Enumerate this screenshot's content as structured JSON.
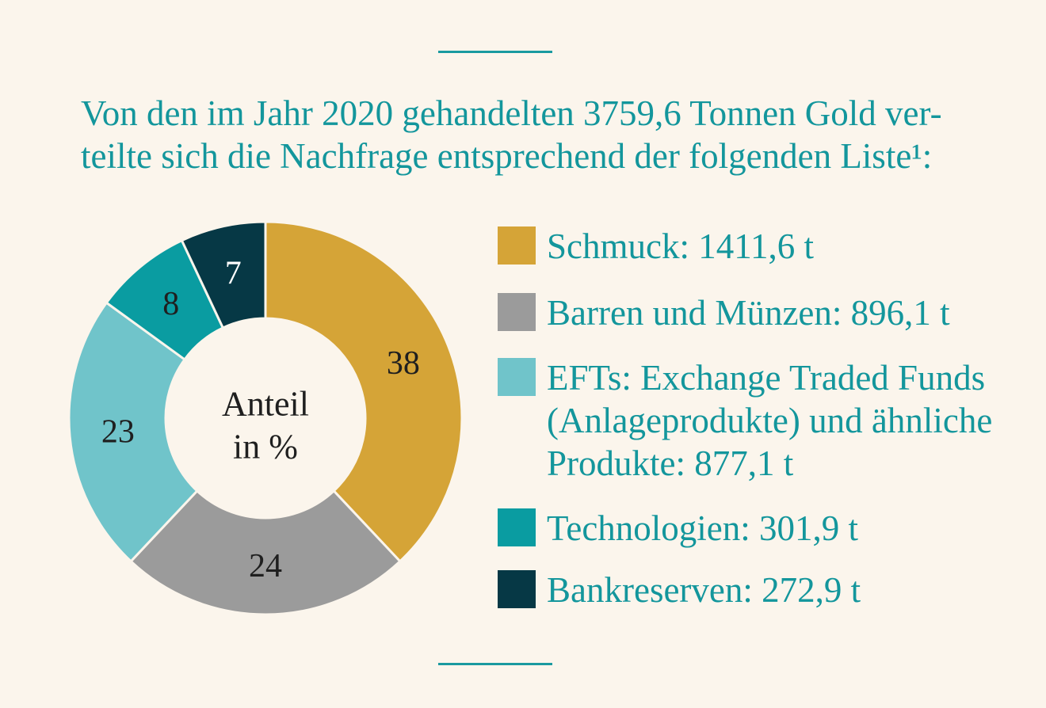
{
  "header": {
    "line1": "Von den im Jahr 2020 gehandelten 3759,6 Tonnen Gold ver-",
    "line2": "teilte sich die Nachfrage entsprechend der folgenden Liste¹:"
  },
  "chart_data": {
    "type": "pie",
    "center_label": [
      "Anteil",
      "in %"
    ],
    "categories": [
      "Schmuck",
      "Barren und Münzen",
      "EFTs",
      "Technologien",
      "Bankreserven"
    ],
    "values": [
      38,
      24,
      23,
      8,
      7
    ],
    "data_labels": [
      "38",
      "24",
      "23",
      "8",
      "7"
    ],
    "colors": [
      "#d5a437",
      "#9b9b9b",
      "#70c4ca",
      "#0a9ca1",
      "#063845"
    ],
    "label_colors": [
      "#1f1f1f",
      "#1f1f1f",
      "#1f1f1f",
      "#1f1f1f",
      "#ffffff"
    ]
  },
  "legend": [
    {
      "color": "#d5a437",
      "lines": [
        "Schmuck: 1411,6 t"
      ]
    },
    {
      "color": "#9b9b9b",
      "lines": [
        "Barren und Münzen: 896,1 t"
      ]
    },
    {
      "color": "#70c4ca",
      "lines": [
        "EFTs: Exchange Traded Funds",
        "(Anlageprodukte) und ähnliche",
        "Produkte: 877,1 t"
      ]
    },
    {
      "color": "#0a9ca1",
      "lines": [
        "Technologien: 301,9 t"
      ]
    },
    {
      "color": "#063845",
      "lines": [
        "Bankreserven: 272,9 t"
      ]
    }
  ]
}
